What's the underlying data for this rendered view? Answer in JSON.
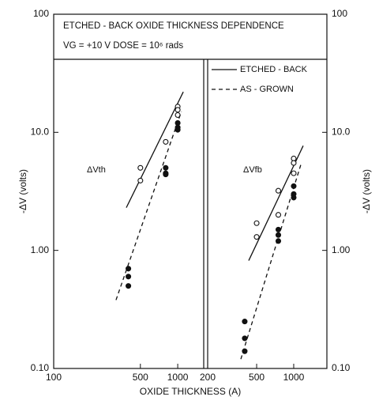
{
  "header": {
    "title": "ETCHED - BACK OXIDE THICKNESS DEPENDENCE",
    "condition": "VG = +10 V  DOSE = 10⁶ rads"
  },
  "xlabel": "OXIDE THICKNESS (A)",
  "chart_data": [
    {
      "type": "scatter",
      "xscale": "log",
      "yscale": "log",
      "xlim": [
        100,
        1620
      ],
      "xticks": [
        100,
        500,
        1000
      ],
      "ylim": [
        0.1,
        100
      ],
      "yticks": [
        {
          "value": 0.1,
          "label": "0.10"
        },
        {
          "value": 1,
          "label": "1.00"
        },
        {
          "value": 10,
          "label": "10.0"
        },
        100
      ],
      "ylabel": "-ΔV (volts)",
      "annotation": "ΔVth",
      "series": [
        {
          "marker": "open",
          "dash": false,
          "x": [
            500,
            500,
            800,
            1000,
            1000,
            1000
          ],
          "values": [
            5.0,
            3.9,
            8.3,
            16.5,
            15.5,
            14
          ],
          "fit": {
            "x": [
              385,
              1109
            ],
            "values": [
              2.3,
              22
            ]
          }
        },
        {
          "marker": "filled",
          "dash": true,
          "x": [
            400,
            400,
            400,
            800,
            800,
            800,
            1000,
            1000,
            1000
          ],
          "values": [
            0.7,
            0.6,
            0.5,
            5,
            4.5,
            4.4,
            12,
            11,
            10.5
          ],
          "fit": {
            "x": [
              318,
              1070
            ],
            "values": [
              0.38,
              15
            ]
          }
        }
      ]
    },
    {
      "type": "scatter",
      "xscale": "log",
      "yscale": "log",
      "xlim": [
        200,
        1860
      ],
      "xticks": [
        200,
        500,
        1000
      ],
      "ylim": [
        0.1,
        100
      ],
      "yticks": [
        {
          "value": 0.1,
          "label": "0.10"
        },
        {
          "value": 1,
          "label": "1.00"
        },
        {
          "value": 10,
          "label": "10.0"
        },
        100
      ],
      "ylabel": "-ΔV (volts)",
      "annotation": "ΔVfb",
      "series": [
        {
          "name": "ETCHED - BACK",
          "marker": "open",
          "dash": false,
          "x": [
            500,
            500,
            750,
            750,
            1000,
            1000,
            1000
          ],
          "values": [
            1.7,
            1.3,
            3.2,
            2.0,
            6,
            5.5,
            4.5
          ],
          "fit": {
            "x": [
              431,
              1194
            ],
            "values": [
              0.82,
              7.7
            ]
          }
        },
        {
          "name": "AS - GROWN",
          "marker": "filled",
          "dash": true,
          "x": [
            400,
            400,
            400,
            750,
            750,
            750,
            1000,
            1000,
            1000
          ],
          "values": [
            0.25,
            0.18,
            0.14,
            1.5,
            1.35,
            1.2,
            3.5,
            3.0,
            2.8
          ],
          "fit": {
            "x": [
              372,
              1160
            ],
            "values": [
              0.12,
              5.6
            ]
          }
        }
      ]
    }
  ]
}
